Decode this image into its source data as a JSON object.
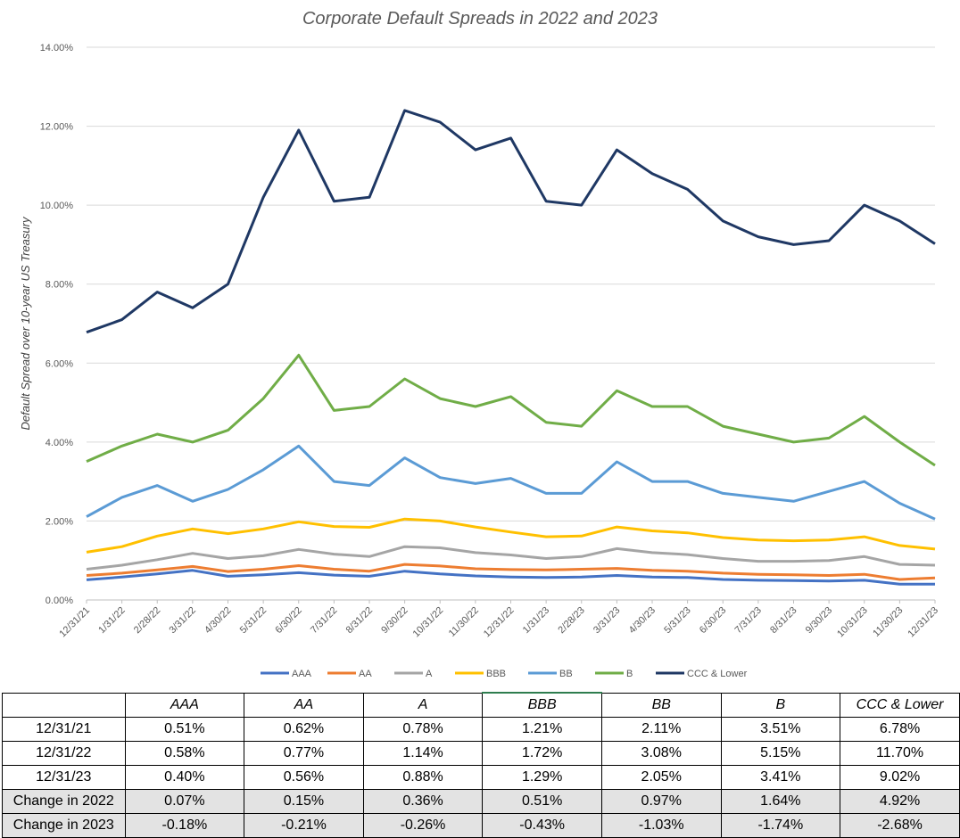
{
  "chart_data": {
    "type": "line",
    "title": "Corporate Default Spreads in 2022 and 2023",
    "ylabel": "Default Spread over 10-year US Treasury",
    "ylim": [
      0,
      14
    ],
    "yticks": [
      "0.00%",
      "2.00%",
      "4.00%",
      "6.00%",
      "8.00%",
      "10.00%",
      "12.00%",
      "14.00%"
    ],
    "x": [
      "12/31/21",
      "1/31/22",
      "2/28/22",
      "3/31/22",
      "4/30/22",
      "5/31/22",
      "6/30/22",
      "7/31/22",
      "8/31/22",
      "9/30/22",
      "10/31/22",
      "11/30/22",
      "12/31/22",
      "1/31/23",
      "2/28/23",
      "3/31/23",
      "4/30/23",
      "5/31/23",
      "6/30/23",
      "7/31/23",
      "8/31/23",
      "9/30/23",
      "10/31/23",
      "11/30/23",
      "12/31/23"
    ],
    "grid": true,
    "legend": "bottom",
    "series": [
      {
        "name": "AAA",
        "color": "#4472c4",
        "values": [
          0.51,
          0.58,
          0.66,
          0.75,
          0.6,
          0.64,
          0.69,
          0.63,
          0.6,
          0.73,
          0.66,
          0.61,
          0.58,
          0.57,
          0.58,
          0.62,
          0.58,
          0.57,
          0.52,
          0.5,
          0.49,
          0.48,
          0.5,
          0.4,
          0.4
        ]
      },
      {
        "name": "AA",
        "color": "#ed7d31",
        "values": [
          0.62,
          0.68,
          0.76,
          0.85,
          0.72,
          0.78,
          0.87,
          0.78,
          0.73,
          0.9,
          0.86,
          0.79,
          0.77,
          0.76,
          0.78,
          0.8,
          0.75,
          0.73,
          0.68,
          0.65,
          0.64,
          0.62,
          0.65,
          0.52,
          0.56
        ]
      },
      {
        "name": "A",
        "color": "#a5a5a5",
        "values": [
          0.78,
          0.88,
          1.02,
          1.18,
          1.05,
          1.12,
          1.28,
          1.16,
          1.1,
          1.35,
          1.32,
          1.2,
          1.14,
          1.05,
          1.1,
          1.3,
          1.2,
          1.15,
          1.05,
          0.98,
          0.98,
          1.0,
          1.1,
          0.9,
          0.88
        ]
      },
      {
        "name": "BBB",
        "color": "#ffc000",
        "values": [
          1.21,
          1.35,
          1.62,
          1.8,
          1.68,
          1.8,
          1.98,
          1.86,
          1.84,
          2.05,
          2.0,
          1.85,
          1.72,
          1.6,
          1.62,
          1.85,
          1.75,
          1.7,
          1.58,
          1.52,
          1.5,
          1.52,
          1.6,
          1.38,
          1.29
        ]
      },
      {
        "name": "BB",
        "color": "#5b9bd5",
        "values": [
          2.11,
          2.6,
          2.9,
          2.5,
          2.8,
          3.3,
          3.9,
          3.0,
          2.9,
          3.6,
          3.1,
          2.95,
          3.08,
          2.7,
          2.7,
          3.5,
          3.0,
          3.0,
          2.7,
          2.6,
          2.5,
          2.75,
          3.0,
          2.45,
          2.05
        ]
      },
      {
        "name": "B",
        "color": "#70ad47",
        "values": [
          3.51,
          3.9,
          4.2,
          4.0,
          4.3,
          5.1,
          6.2,
          4.8,
          4.9,
          5.6,
          5.1,
          4.9,
          5.15,
          4.5,
          4.4,
          5.3,
          4.9,
          4.9,
          4.4,
          4.2,
          4.0,
          4.1,
          4.65,
          4.0,
          3.41
        ]
      },
      {
        "name": "CCC & Lower",
        "color": "#1f3864",
        "values": [
          6.78,
          7.1,
          7.8,
          7.4,
          8.0,
          10.2,
          11.9,
          10.1,
          10.2,
          12.4,
          12.1,
          11.4,
          11.7,
          10.1,
          10.0,
          11.4,
          10.8,
          10.4,
          9.6,
          9.2,
          9.0,
          9.1,
          10.0,
          9.6,
          9.02
        ]
      }
    ]
  },
  "table": {
    "headers": [
      "",
      "AAA",
      "AA",
      "A",
      "BBB",
      "BB",
      "B",
      "CCC & Lower"
    ],
    "rows": [
      [
        "12/31/21",
        "0.51%",
        "0.62%",
        "0.78%",
        "1.21%",
        "2.11%",
        "3.51%",
        "6.78%"
      ],
      [
        "12/31/22",
        "0.58%",
        "0.77%",
        "1.14%",
        "1.72%",
        "3.08%",
        "5.15%",
        "11.70%"
      ],
      [
        "12/31/23",
        "0.40%",
        "0.56%",
        "0.88%",
        "1.29%",
        "2.05%",
        "3.41%",
        "9.02%"
      ],
      [
        "Change in 2022",
        "0.07%",
        "0.15%",
        "0.36%",
        "0.51%",
        "0.97%",
        "1.64%",
        "4.92%"
      ],
      [
        "Change in 2023",
        "-0.18%",
        "-0.21%",
        "-0.26%",
        "-0.43%",
        "-1.03%",
        "-1.74%",
        "-2.68%"
      ]
    ]
  }
}
